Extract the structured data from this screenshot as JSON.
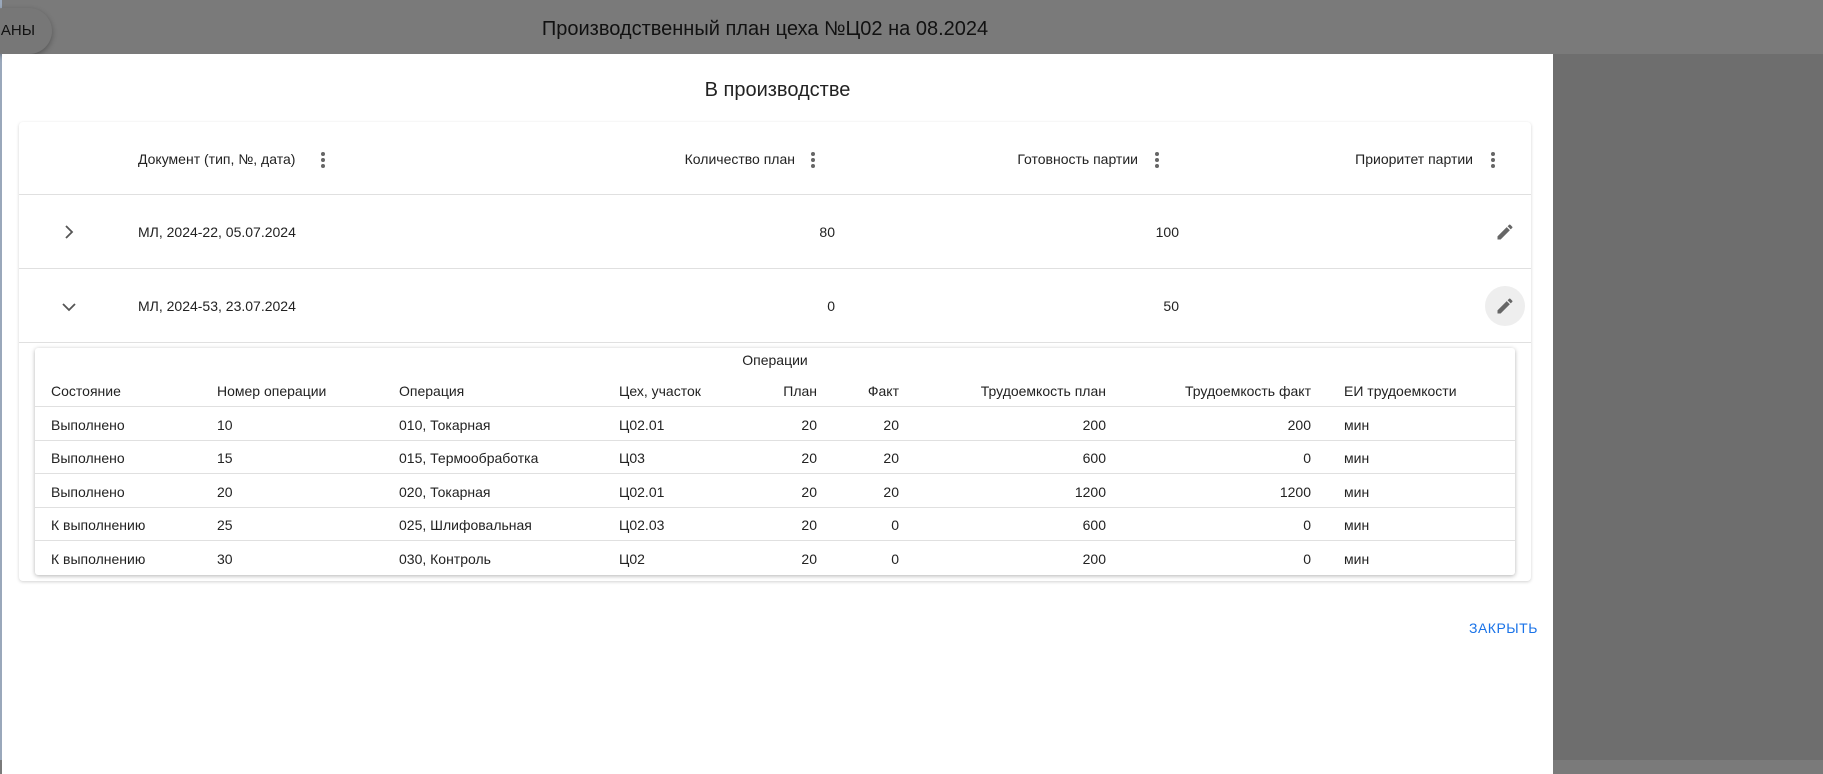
{
  "background": {
    "button_label": "АНЫ",
    "title": "Производственный план цеха №Ц02 на 08.2024"
  },
  "dialog": {
    "title": "В производстве",
    "close_label": "ЗАКРЫТЬ"
  },
  "table": {
    "headers": [
      "Документ (тип, №, дата)",
      "Количество план",
      "Готовность партии",
      "Приоритет партии"
    ],
    "rows": [
      {
        "document": "МЛ, 2024-22, 05.07.2024",
        "qty": "80",
        "ready": "100",
        "priority": "",
        "expanded": false
      },
      {
        "document": "МЛ, 2024-53, 23.07.2024",
        "qty": "0",
        "ready": "50",
        "priority": "",
        "expanded": true
      }
    ]
  },
  "operations": {
    "title": "Операции",
    "headers": [
      "Состояние",
      "Номер операции",
      "Операция",
      "Цех, участок",
      "План",
      "Факт",
      "Трудоемкость план",
      "Трудоемкость факт",
      "ЕИ трудоемкости"
    ],
    "rows": [
      [
        "Выполнено",
        "10",
        "010, Токарная",
        "Ц02.01",
        "20",
        "20",
        "200",
        "200",
        "мин"
      ],
      [
        "Выполнено",
        "15",
        "015, Термообработка",
        "Ц03",
        "20",
        "20",
        "600",
        "0",
        "мин"
      ],
      [
        "Выполнено",
        "20",
        "020, Токарная",
        "Ц02.01",
        "20",
        "20",
        "1200",
        "1200",
        "мин"
      ],
      [
        "К выполнению",
        "25",
        "025, Шлифовальная",
        "Ц02.03",
        "20",
        "0",
        "600",
        "0",
        "мин"
      ],
      [
        "К выполнению",
        "30",
        "030, Контроль",
        "Ц02",
        "20",
        "0",
        "200",
        "0",
        "мин"
      ]
    ]
  }
}
